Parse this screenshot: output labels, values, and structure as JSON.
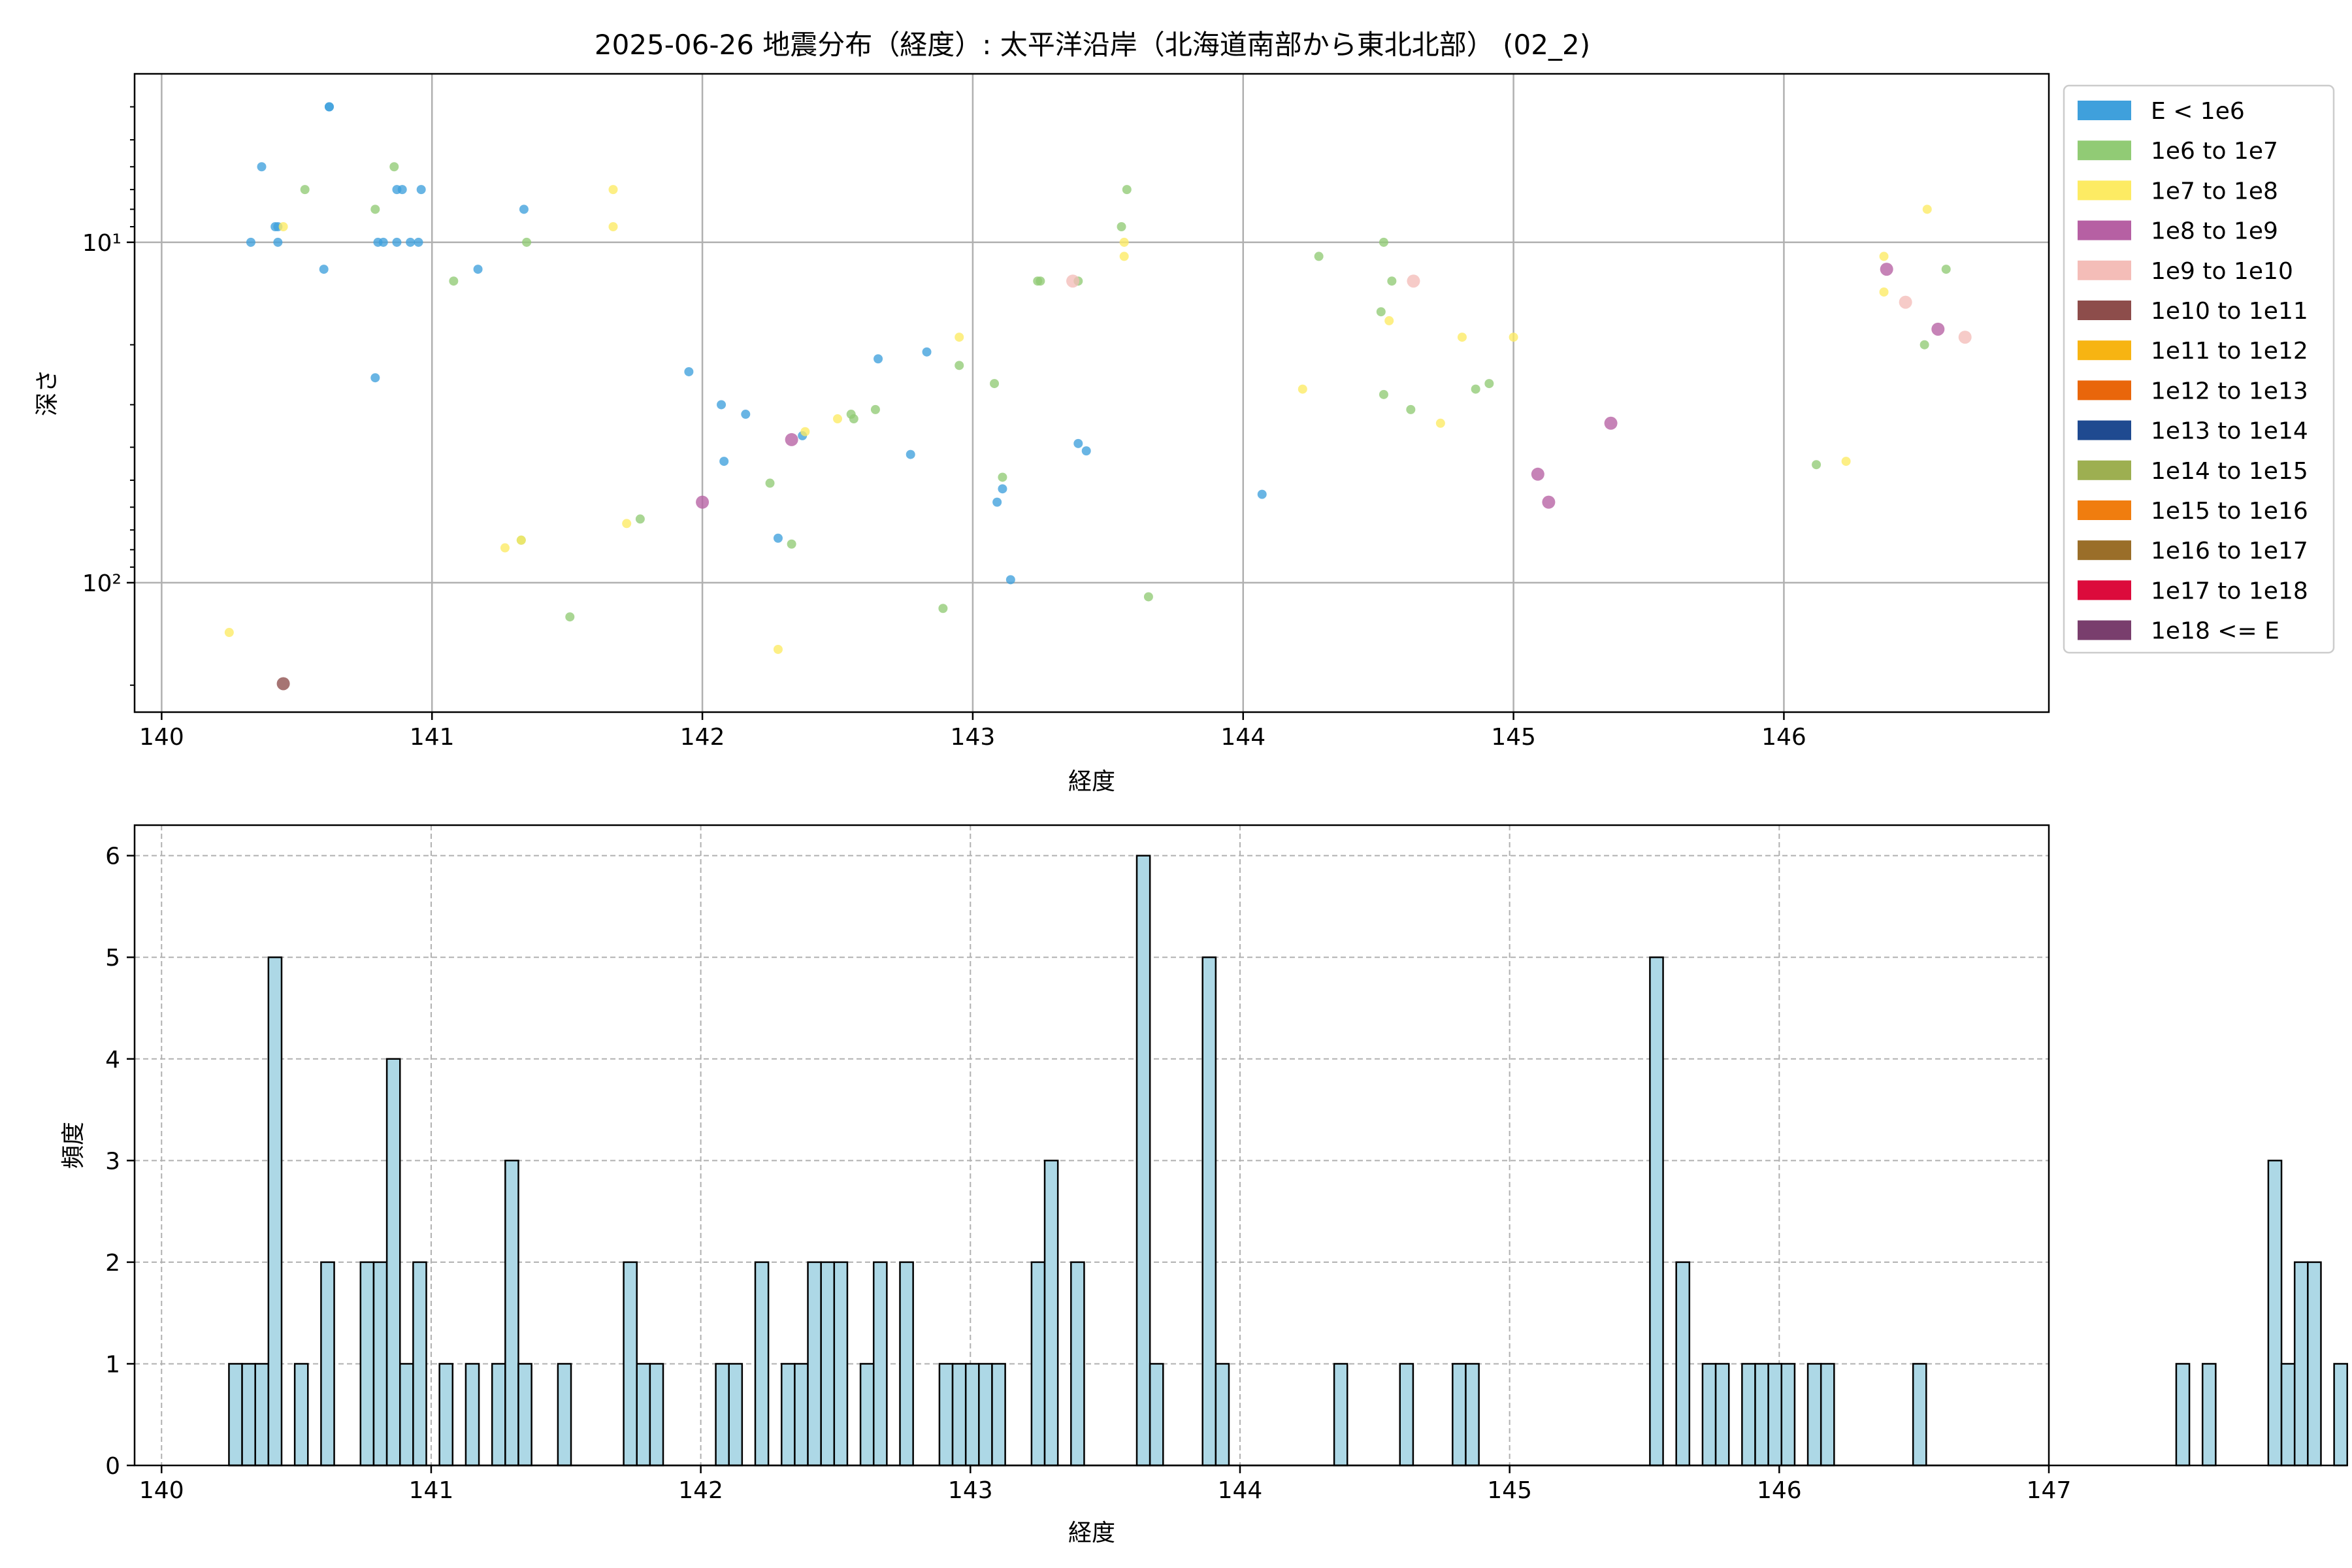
{
  "figure": {
    "title": "2025-06-26 地震分布（経度）: 太平洋沿岸（北海道南部から東北北部） (02_2)"
  },
  "colors": {
    "grid": "#b0b0b0",
    "axes": "#000000",
    "hist_fill": "#add8e6",
    "hist_edge": "#000000"
  },
  "chart_data": [
    {
      "type": "scatter",
      "xlabel": "経度",
      "ylabel": "深さ",
      "xlim": [
        139.9,
        146.98
      ],
      "ylim": [
        240,
        3.2
      ],
      "y_scale": "log",
      "y_inverted": true,
      "x_ticks": [
        140,
        141,
        142,
        143,
        144,
        145,
        146
      ],
      "x_tick_labels": [
        "140",
        "141",
        "142",
        "143",
        "144",
        "145",
        "146"
      ],
      "y_ticks": [
        10,
        100
      ],
      "y_tick_labels": [
        "10¹",
        "10²"
      ],
      "grid": true,
      "legend_position": "outside-right",
      "legend": [
        {
          "label": "E < 1e6",
          "color": "#3fa0dc"
        },
        {
          "label": "1e6 to 1e7",
          "color": "#91cb75"
        },
        {
          "label": "1e7 to 1e8",
          "color": "#fdeb63"
        },
        {
          "label": "1e8 to 1e9",
          "color": "#b660a3"
        },
        {
          "label": "1e9 to 1e10",
          "color": "#f4bdb8"
        },
        {
          "label": "1e10 to 1e11",
          "color": "#8d4d4b"
        },
        {
          "label": "1e11 to 1e12",
          "color": "#f7b412"
        },
        {
          "label": "1e12 to 1e13",
          "color": "#e9660b"
        },
        {
          "label": "1e13 to 1e14",
          "color": "#1f4a90"
        },
        {
          "label": "1e14 to 1e15",
          "color": "#9daf51"
        },
        {
          "label": "1e15 to 1e16",
          "color": "#f07d0f"
        },
        {
          "label": "1e16 to 1e17",
          "color": "#9a6e29"
        },
        {
          "label": "1e17 to 1e18",
          "color": "#dc0b3c"
        },
        {
          "label": "1e18 <= E",
          "color": "#793e6d"
        }
      ],
      "series": [
        {
          "name": "E < 1e6",
          "points": [
            [
              140.37,
              6
            ],
            [
              140.33,
              10
            ],
            [
              140.42,
              9
            ],
            [
              140.43,
              10
            ],
            [
              140.43,
              9
            ],
            [
              140.6,
              12
            ],
            [
              140.62,
              4
            ],
            [
              140.79,
              25
            ],
            [
              140.8,
              10
            ],
            [
              140.82,
              10
            ],
            [
              140.87,
              10
            ],
            [
              140.87,
              7
            ],
            [
              140.89,
              7
            ],
            [
              140.92,
              10
            ],
            [
              140.95,
              10
            ],
            [
              140.96,
              7
            ],
            [
              141.17,
              12
            ],
            [
              141.34,
              8
            ],
            [
              141.95,
              24
            ],
            [
              142.07,
              30
            ],
            [
              142.08,
              44
            ],
            [
              142.16,
              32
            ],
            [
              142.28,
              74
            ],
            [
              142.37,
              37
            ],
            [
              142.65,
              22
            ],
            [
              142.77,
              42
            ],
            [
              142.83,
              21
            ],
            [
              143.09,
              58
            ],
            [
              143.11,
              53
            ],
            [
              143.14,
              98
            ],
            [
              143.39,
              39
            ],
            [
              143.42,
              41
            ],
            [
              144.07,
              55
            ],
            [
              140.62,
              4
            ]
          ]
        },
        {
          "name": "1e6 to 1e7",
          "points": [
            [
              140.53,
              7
            ],
            [
              140.79,
              8
            ],
            [
              140.86,
              6
            ],
            [
              141.08,
              13
            ],
            [
              141.35,
              10
            ],
            [
              141.33,
              75
            ],
            [
              141.51,
              126
            ],
            [
              141.77,
              65
            ],
            [
              142.25,
              51
            ],
            [
              142.33,
              77
            ],
            [
              142.56,
              33
            ],
            [
              142.55,
              32
            ],
            [
              142.64,
              31
            ],
            [
              142.89,
              119
            ],
            [
              142.95,
              23
            ],
            [
              143.08,
              26
            ],
            [
              143.11,
              49
            ],
            [
              143.24,
              13
            ],
            [
              143.25,
              13
            ],
            [
              143.39,
              13
            ],
            [
              143.55,
              9
            ],
            [
              143.57,
              7
            ],
            [
              143.65,
              110
            ],
            [
              144.28,
              11
            ],
            [
              144.52,
              10
            ],
            [
              144.51,
              16
            ],
            [
              144.55,
              13
            ],
            [
              144.52,
              28
            ],
            [
              144.62,
              31
            ],
            [
              144.86,
              27
            ],
            [
              144.91,
              26
            ],
            [
              146.12,
              45
            ],
            [
              146.52,
              20
            ],
            [
              146.6,
              12
            ]
          ]
        },
        {
          "name": "1e7 to 1e8",
          "points": [
            [
              140.25,
              140
            ],
            [
              140.45,
              9
            ],
            [
              141.27,
              79
            ],
            [
              141.33,
              75
            ],
            [
              141.67,
              7
            ],
            [
              141.67,
              9
            ],
            [
              141.72,
              67
            ],
            [
              142.28,
              157
            ],
            [
              142.38,
              36
            ],
            [
              142.5,
              33
            ],
            [
              142.95,
              19
            ],
            [
              143.56,
              10
            ],
            [
              143.56,
              11
            ],
            [
              144.22,
              27
            ],
            [
              144.54,
              17
            ],
            [
              144.73,
              34
            ],
            [
              144.81,
              19
            ],
            [
              145.0,
              19
            ],
            [
              146.23,
              44
            ],
            [
              146.37,
              11
            ],
            [
              146.37,
              14
            ],
            [
              146.53,
              8
            ]
          ]
        },
        {
          "name": "1e8 to 1e9",
          "points": [
            [
              142.0,
              58
            ],
            [
              142.33,
              38
            ],
            [
              145.09,
              48
            ],
            [
              145.13,
              58
            ],
            [
              145.36,
              34
            ],
            [
              146.38,
              12
            ],
            [
              146.57,
              18
            ]
          ]
        },
        {
          "name": "1e9 to 1e10",
          "points": [
            [
              143.37,
              13
            ],
            [
              144.63,
              13
            ],
            [
              146.45,
              15
            ],
            [
              146.67,
              19
            ]
          ]
        },
        {
          "name": "1e10 to 1e11",
          "points": [
            [
              140.45,
              198
            ]
          ]
        }
      ]
    },
    {
      "type": "bar",
      "subtype": "histogram",
      "xlabel": "経度",
      "ylabel": "頻度",
      "xlim": [
        139.9,
        147.0
      ],
      "ylim": [
        0,
        6.3
      ],
      "x_ticks": [
        140,
        141,
        142,
        143,
        144,
        145,
        146,
        147
      ],
      "x_tick_labels": [
        "140",
        "141",
        "142",
        "143",
        "144",
        "145",
        "146",
        "147"
      ],
      "y_ticks": [
        0,
        1,
        2,
        3,
        4,
        5,
        6
      ],
      "y_tick_labels": [
        "0",
        "1",
        "2",
        "3",
        "4",
        "5",
        "6"
      ],
      "grid": true,
      "grid_style": "dashed",
      "bin_edges_start": 140.25,
      "bin_width": 0.0488,
      "values": [
        1,
        1,
        1,
        5,
        0,
        1,
        0,
        2,
        0,
        0,
        2,
        2,
        4,
        1,
        2,
        0,
        1,
        0,
        1,
        0,
        1,
        3,
        1,
        0,
        0,
        1,
        0,
        0,
        0,
        0,
        2,
        1,
        1,
        0,
        0,
        0,
        0,
        1,
        1,
        0,
        2,
        0,
        1,
        1,
        2,
        2,
        2,
        0,
        1,
        2,
        0,
        2,
        0,
        0,
        1,
        1,
        1,
        1,
        1,
        0,
        0,
        2,
        3,
        0,
        2,
        0,
        0,
        0,
        0,
        6,
        1,
        0,
        0,
        0,
        5,
        1,
        0,
        0,
        0,
        0,
        0,
        0,
        0,
        0,
        1,
        0,
        0,
        0,
        0,
        1,
        0,
        0,
        0,
        1,
        1,
        0,
        0,
        0,
        0,
        0,
        0,
        0,
        0,
        0,
        0,
        0,
        0,
        0,
        5,
        0,
        2,
        0,
        1,
        1,
        0,
        1,
        1,
        1,
        1,
        0,
        1,
        1,
        0,
        0,
        0,
        0,
        0,
        0,
        1,
        0,
        0,
        0,
        0,
        0,
        0,
        0,
        0,
        0,
        0,
        0,
        0,
        0,
        0,
        0,
        0,
        0,
        0,
        0,
        1,
        0,
        1,
        0,
        0,
        0,
        0,
        3,
        1,
        2,
        2,
        0,
        1
      ]
    }
  ]
}
